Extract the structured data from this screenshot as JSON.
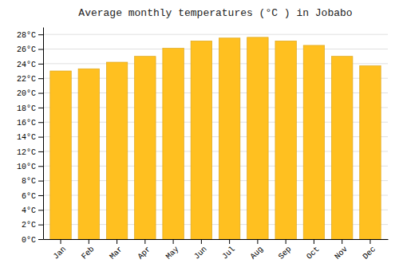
{
  "chart_data": {
    "type": "bar",
    "title": "Average monthly temperatures (°C ) in Jobabo",
    "categories": [
      "Jan",
      "Feb",
      "Mar",
      "Apr",
      "May",
      "Jun",
      "Jul",
      "Aug",
      "Sep",
      "Oct",
      "Nov",
      "Dec"
    ],
    "values": [
      23.0,
      23.3,
      24.2,
      25.0,
      26.1,
      27.1,
      27.5,
      27.6,
      27.1,
      26.5,
      25.0,
      23.7
    ],
    "color": "#FFC020",
    "ylim": [
      0,
      29
    ],
    "yticks": [
      {
        "value": 0,
        "label": "0°C"
      },
      {
        "value": 2,
        "label": "2°C"
      },
      {
        "value": 4,
        "label": "4°C"
      },
      {
        "value": 6,
        "label": "6°C"
      },
      {
        "value": 8,
        "label": "8°C"
      },
      {
        "value": 10,
        "label": "10°C"
      },
      {
        "value": 12,
        "label": "12°C"
      },
      {
        "value": 14,
        "label": "14°C"
      },
      {
        "value": 16,
        "label": "16°C"
      },
      {
        "value": 18,
        "label": "18°C"
      },
      {
        "value": 20,
        "label": "20°C"
      },
      {
        "value": 22,
        "label": "22°C"
      },
      {
        "value": 24,
        "label": "24°C"
      },
      {
        "value": 26,
        "label": "26°C"
      },
      {
        "value": 28,
        "label": "28°C"
      }
    ],
    "grid": true
  }
}
